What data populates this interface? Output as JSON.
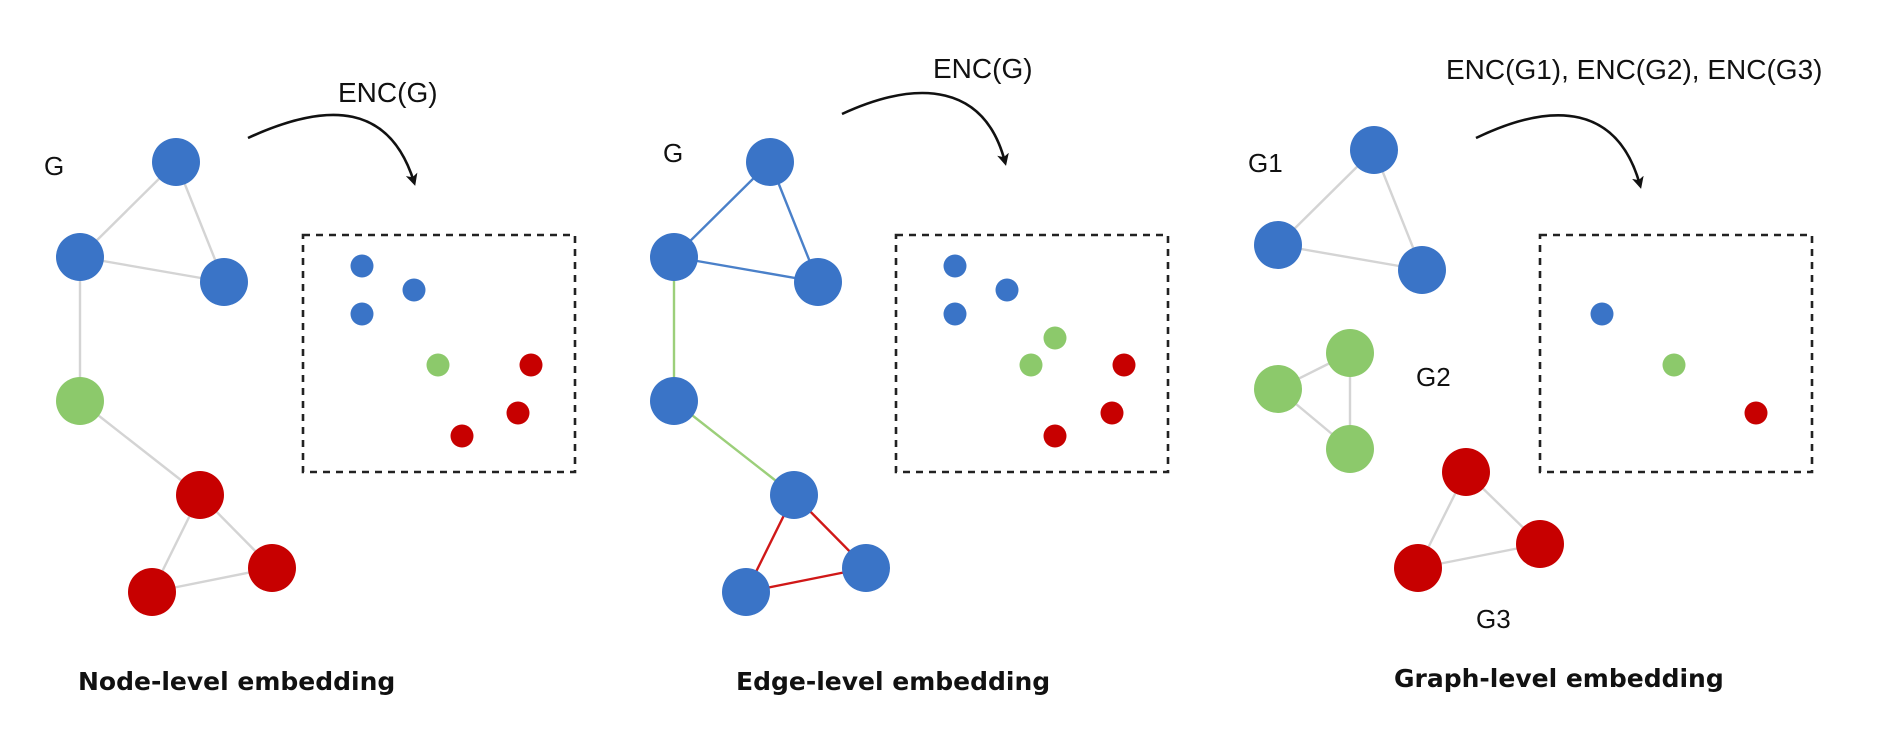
{
  "colors": {
    "blue": "#3a74c7",
    "green": "#8cc96b",
    "red": "#c70000",
    "edge_gray": "#d4d4d4",
    "edge_blue": "#4a80c9",
    "edge_green": "#9ccf7a",
    "edge_red": "#d01818"
  },
  "panels": [
    {
      "id": "node",
      "graph_labels": [
        "G"
      ],
      "enc_label": "ENC(G)",
      "caption": "Node-level embedding"
    },
    {
      "id": "edge",
      "graph_labels": [
        "G"
      ],
      "enc_label": "ENC(G)",
      "caption": "Edge-level embedding"
    },
    {
      "id": "graph",
      "graph_labels": [
        "G1",
        "G2",
        "G3"
      ],
      "enc_label": "ENC(G1), ENC(G2), ENC(G3)",
      "caption": "Graph-level embedding"
    }
  ]
}
